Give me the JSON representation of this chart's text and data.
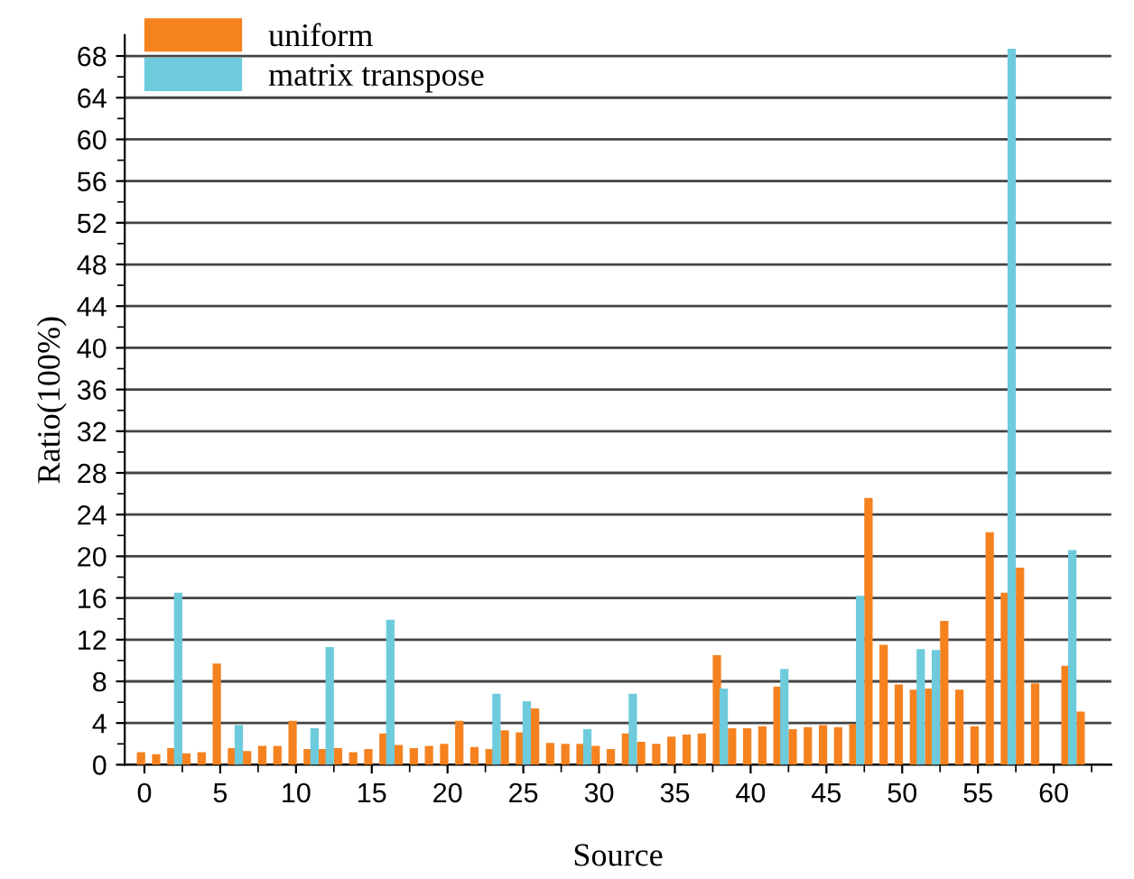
{
  "chart_data": {
    "type": "bar",
    "xlabel": "Source",
    "ylabel": "Ratio(100%)",
    "x": [
      0,
      1,
      2,
      3,
      4,
      5,
      6,
      7,
      8,
      9,
      10,
      11,
      12,
      13,
      14,
      15,
      16,
      17,
      18,
      19,
      20,
      21,
      22,
      23,
      24,
      25,
      26,
      27,
      28,
      29,
      30,
      31,
      32,
      33,
      34,
      35,
      36,
      37,
      38,
      39,
      40,
      41,
      42,
      43,
      44,
      45,
      46,
      47,
      48,
      49,
      50,
      51,
      52,
      53,
      54,
      55,
      56,
      57,
      58,
      59,
      60,
      61,
      62
    ],
    "series": [
      {
        "name": "uniform",
        "color": "#f5821f",
        "values": [
          1.2,
          1.0,
          1.6,
          1.1,
          1.2,
          9.7,
          1.6,
          1.3,
          1.8,
          1.8,
          4.2,
          1.5,
          1.5,
          1.6,
          1.2,
          1.5,
          3.0,
          1.9,
          1.6,
          1.8,
          2.0,
          4.2,
          1.7,
          1.5,
          3.3,
          3.1,
          5.4,
          2.1,
          2.0,
          2.0,
          1.8,
          1.5,
          3.0,
          2.2,
          2.0,
          2.7,
          2.9,
          3.0,
          10.5,
          3.5,
          3.5,
          3.7,
          7.5,
          3.4,
          3.6,
          3.8,
          3.6,
          3.9,
          25.6,
          11.5,
          7.7,
          7.2,
          7.3,
          13.8,
          7.2,
          3.7,
          22.3,
          16.5,
          18.9,
          7.8,
          null,
          9.5,
          5.1
        ]
      },
      {
        "name": "matrix transpose",
        "color": "#6dcbdc",
        "values": [
          null,
          null,
          16.5,
          null,
          null,
          null,
          3.8,
          null,
          null,
          null,
          null,
          3.5,
          11.3,
          null,
          null,
          null,
          13.9,
          null,
          null,
          null,
          null,
          null,
          null,
          6.8,
          null,
          6.1,
          null,
          null,
          null,
          3.4,
          null,
          null,
          6.8,
          null,
          null,
          null,
          null,
          null,
          7.3,
          null,
          null,
          null,
          9.2,
          null,
          null,
          null,
          null,
          16.2,
          null,
          null,
          null,
          11.1,
          11.0,
          null,
          null,
          null,
          null,
          68.7,
          null,
          null,
          null,
          20.6,
          null
        ]
      }
    ],
    "xlim": [
      -1.3,
      63.8
    ],
    "xticks": [
      0,
      {
        "value": 2.5,
        "label": null
      },
      5,
      {
        "value": 7.5,
        "label": null
      },
      10,
      {
        "value": 12.5,
        "label": null
      },
      15,
      {
        "value": 17.5,
        "label": null
      },
      20,
      {
        "value": 22.5,
        "label": null
      },
      25,
      {
        "value": 27.5,
        "label": null
      },
      30,
      {
        "value": 32.5,
        "label": null
      },
      35,
      {
        "value": 37.5,
        "label": null
      },
      40,
      {
        "value": 42.5,
        "label": null
      },
      45,
      {
        "value": 47.5,
        "label": null
      },
      50,
      {
        "value": 52.5,
        "label": null
      },
      55,
      {
        "value": 57.5,
        "label": null
      },
      60,
      {
        "value": 62.5,
        "label": null
      }
    ],
    "ylim": [
      0,
      70
    ],
    "yticks": [
      0,
      {
        "value": 2,
        "label": null
      },
      4,
      {
        "value": 6,
        "label": null
      },
      8,
      {
        "value": 10,
        "label": null
      },
      12,
      {
        "value": 14,
        "label": null
      },
      16,
      {
        "value": 18,
        "label": null
      },
      20,
      {
        "value": 22,
        "label": null
      },
      24,
      {
        "value": 26,
        "label": null
      },
      28,
      {
        "value": 30,
        "label": null
      },
      32,
      {
        "value": 34,
        "label": null
      },
      36,
      {
        "value": 38,
        "label": null
      },
      40,
      {
        "value": 42,
        "label": null
      },
      44,
      {
        "value": 46,
        "label": null
      },
      48,
      {
        "value": 50,
        "label": null
      },
      52,
      {
        "value": 54,
        "label": null
      },
      56,
      {
        "value": 58,
        "label": null
      },
      60,
      {
        "value": 62,
        "label": null
      },
      64,
      {
        "value": 66,
        "label": null
      },
      68
    ],
    "grid": "y",
    "legend": "top left"
  }
}
